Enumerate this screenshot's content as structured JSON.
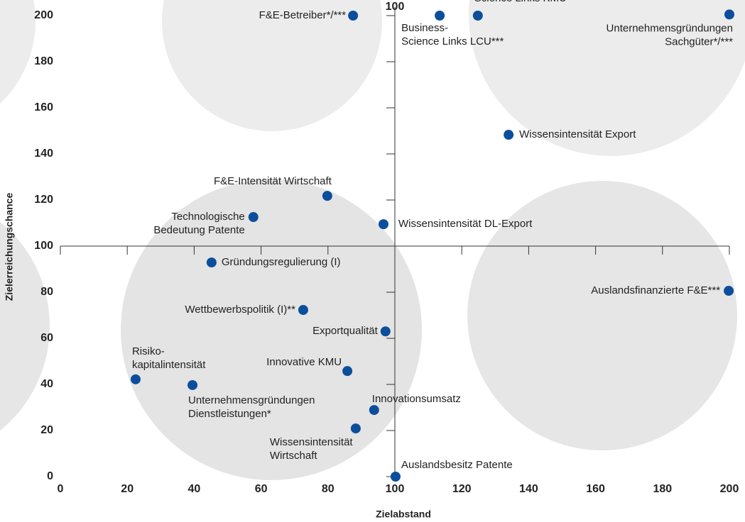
{
  "chart_data": {
    "type": "scatter",
    "x_label": "Zielabstand",
    "y_label": "Zielerreichungschance",
    "xlim": [
      0,
      200
    ],
    "ylim": [
      0,
      200
    ],
    "xticks": [
      0,
      20,
      40,
      60,
      80,
      100,
      120,
      140,
      160,
      180,
      200
    ],
    "yticks": [
      0,
      20,
      40,
      60,
      80,
      100,
      120,
      140,
      160,
      180,
      200
    ],
    "axis_crossing": 100,
    "color": "#0b4f9c",
    "points": [
      {
        "label": [
          "F&E-Betreiber*/***"
        ],
        "x": 87.5,
        "y": 200
      },
      {
        "label": [
          "Business-",
          "Science Links LCU***"
        ],
        "x": 113.4,
        "y": 200
      },
      {
        "label": [
          "Science Links KMU"
        ],
        "x": 124.8,
        "y": 200
      },
      {
        "label": [
          "Unternehmensgründungen",
          "Sachgüter*/***"
        ],
        "x": 200,
        "y": 200.5
      },
      {
        "label": [
          "Wissensintensität Export"
        ],
        "x": 134,
        "y": 148.3
      },
      {
        "label": [
          "F&E-Intensität Wirtschaft"
        ],
        "x": 79.8,
        "y": 121.8
      },
      {
        "label": [
          "Technologische",
          "Bedeutung Patente"
        ],
        "x": 57.7,
        "y": 112.6
      },
      {
        "label": [
          "Wissensintensität DL-Export"
        ],
        "x": 96.6,
        "y": 109.5
      },
      {
        "label": [
          "Gründungsregulierung (I)"
        ],
        "x": 45.2,
        "y": 92.9
      },
      {
        "label": [
          "Auslandsfinanzierte F&E***"
        ],
        "x": 199.8,
        "y": 80.6
      },
      {
        "label": [
          "Wettbewerbspolitik (I)**"
        ],
        "x": 72.6,
        "y": 72.3
      },
      {
        "label": [
          "Exportqualität"
        ],
        "x": 97.2,
        "y": 63
      },
      {
        "label": [
          "Innovative KMU"
        ],
        "x": 85.8,
        "y": 45.8
      },
      {
        "label": [
          "Risiko-",
          "kapitalintensität"
        ],
        "x": 22.5,
        "y": 42.2
      },
      {
        "label": [
          "Unternehmensgründungen",
          "Dienstleistungen*"
        ],
        "x": 39.5,
        "y": 39.7
      },
      {
        "label": [
          "Innovationsumsatz"
        ],
        "x": 93.8,
        "y": 28.9
      },
      {
        "label": [
          "Wissensintensität",
          "Wirtschaft"
        ],
        "x": 88.3,
        "y": 20.9
      },
      {
        "label": [
          "Auslandsbesitz Patente"
        ],
        "x": 100.2,
        "y": 0
      }
    ]
  }
}
